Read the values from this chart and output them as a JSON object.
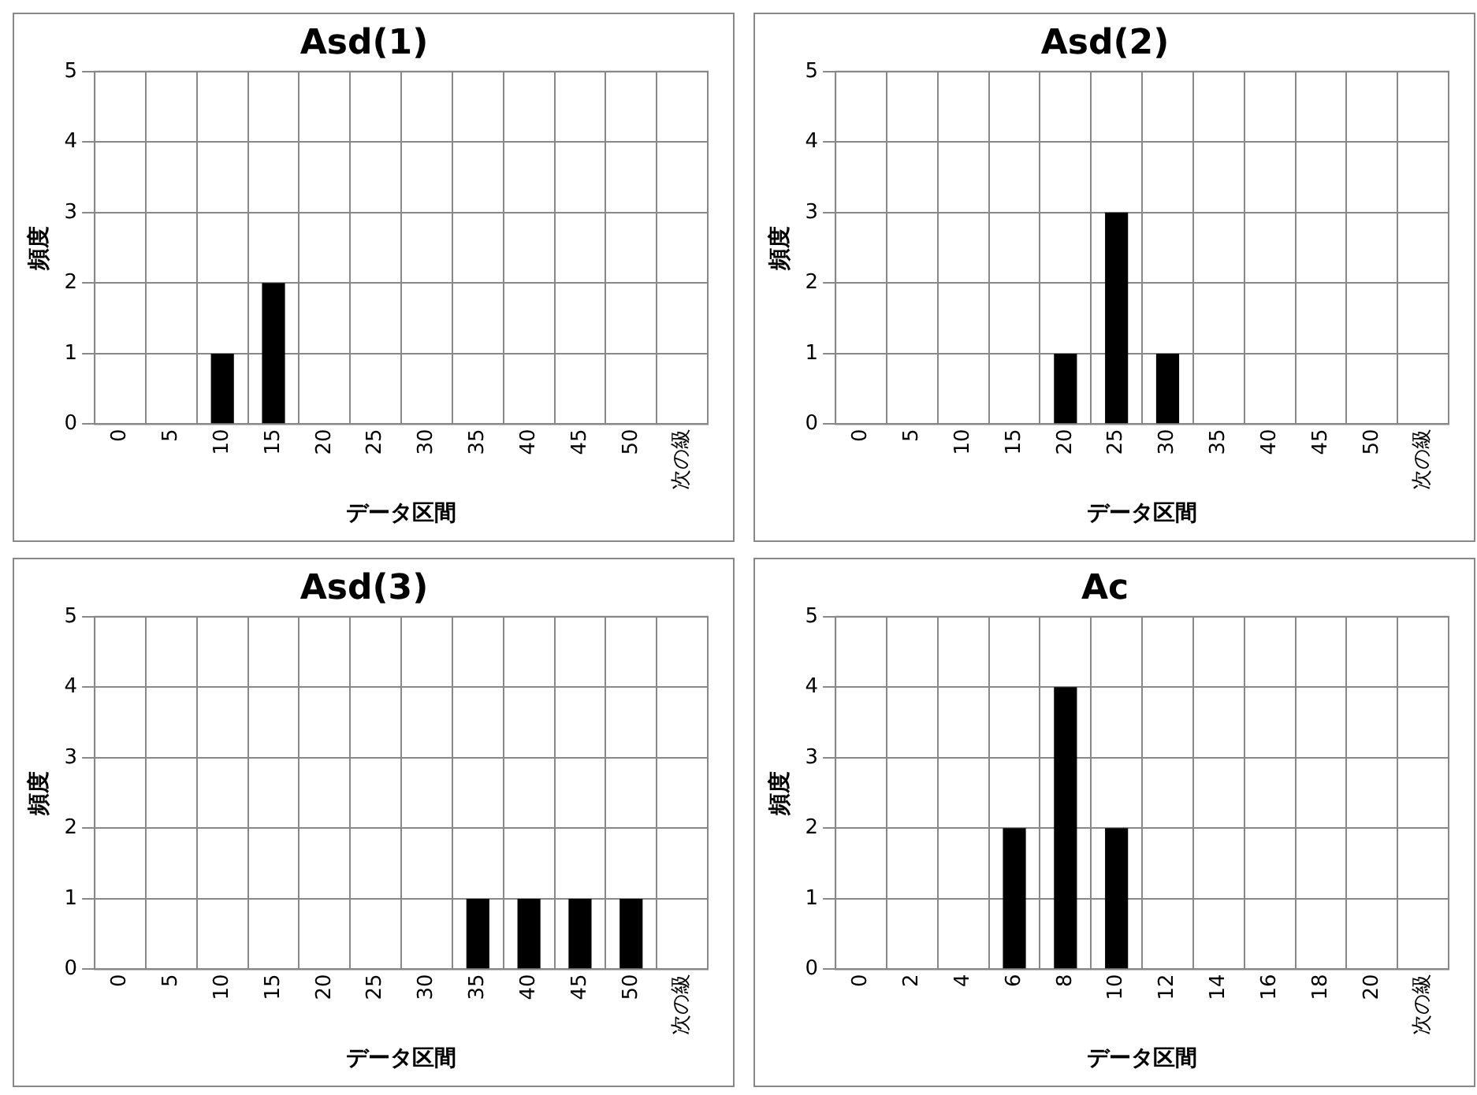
{
  "chart_data": [
    {
      "type": "bar",
      "title": "Asd(1)",
      "xlabel": "データ区間",
      "ylabel": "頻度",
      "categories": [
        "0",
        "5",
        "10",
        "15",
        "20",
        "25",
        "30",
        "35",
        "40",
        "45",
        "50",
        "次の級"
      ],
      "values": [
        0,
        0,
        1,
        2,
        0,
        0,
        0,
        0,
        0,
        0,
        0,
        0
      ],
      "color": "#000000",
      "ylim": [
        0,
        5
      ],
      "yticks": [
        0,
        1,
        2,
        3,
        4,
        5
      ],
      "grid": true
    },
    {
      "type": "bar",
      "title": "Asd(2)",
      "xlabel": "データ区間",
      "ylabel": "頻度",
      "categories": [
        "0",
        "5",
        "10",
        "15",
        "20",
        "25",
        "30",
        "35",
        "40",
        "45",
        "50",
        "次の級"
      ],
      "values": [
        0,
        0,
        0,
        0,
        1,
        3,
        1,
        0,
        0,
        0,
        0,
        0
      ],
      "color": "#000000",
      "ylim": [
        0,
        5
      ],
      "yticks": [
        0,
        1,
        2,
        3,
        4,
        5
      ],
      "grid": true
    },
    {
      "type": "bar",
      "title": "Asd(3)",
      "xlabel": "データ区間",
      "ylabel": "頻度",
      "categories": [
        "0",
        "5",
        "10",
        "15",
        "20",
        "25",
        "30",
        "35",
        "40",
        "45",
        "50",
        "次の級"
      ],
      "values": [
        0,
        0,
        0,
        0,
        0,
        0,
        0,
        1,
        1,
        1,
        1,
        0
      ],
      "color": "#000000",
      "ylim": [
        0,
        5
      ],
      "yticks": [
        0,
        1,
        2,
        3,
        4,
        5
      ],
      "grid": true
    },
    {
      "type": "bar",
      "title": "Ac",
      "xlabel": "データ区間",
      "ylabel": "頻度",
      "categories": [
        "0",
        "2",
        "4",
        "6",
        "8",
        "10",
        "12",
        "14",
        "16",
        "18",
        "20",
        "次の級"
      ],
      "values": [
        0,
        0,
        0,
        2,
        4,
        2,
        0,
        0,
        0,
        0,
        0,
        0
      ],
      "color": "#000000",
      "ylim": [
        0,
        5
      ],
      "yticks": [
        0,
        1,
        2,
        3,
        4,
        5
      ],
      "grid": true
    }
  ]
}
